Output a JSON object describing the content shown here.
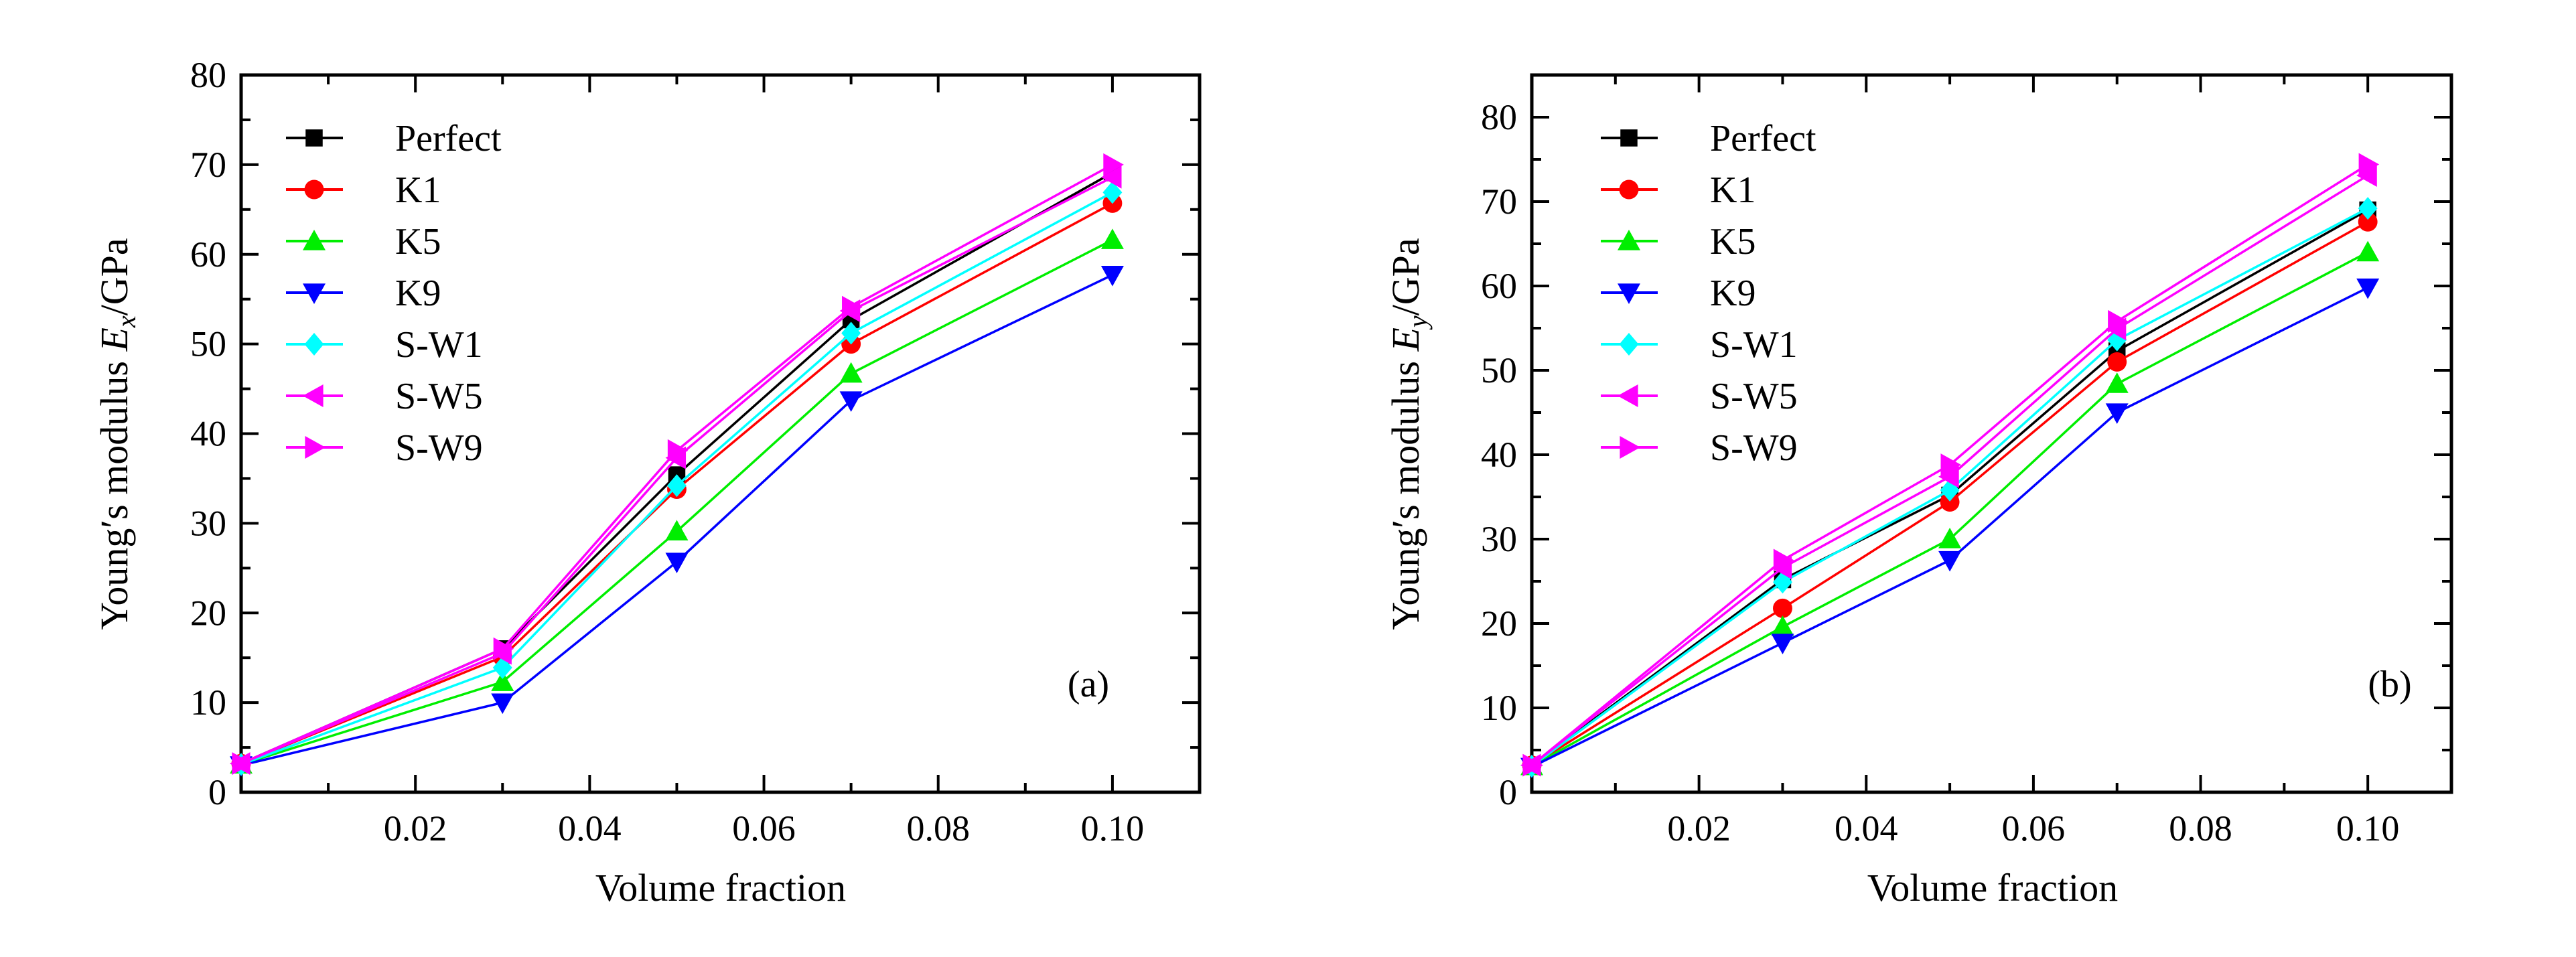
{
  "chart_data": [
    {
      "type": "line",
      "panel_label": "(a)",
      "xlabel": "Volume fraction",
      "ylabel_prefix": "Young′s modulus ",
      "ylabel_symbol": "E",
      "ylabel_sub": "x",
      "ylabel_suffix": "/GPa",
      "xlim": [
        0,
        0.11
      ],
      "ylim": [
        0,
        80
      ],
      "xticks": [
        0.02,
        0.04,
        0.06,
        0.08,
        0.1
      ],
      "xtick_labels": [
        "0.02",
        "0.04",
        "0.06",
        "0.08",
        "0.10"
      ],
      "yticks": [
        0,
        10,
        20,
        30,
        40,
        50,
        60,
        70,
        80
      ],
      "ytick_labels": [
        "0",
        "10",
        "20",
        "30",
        "40",
        "50",
        "60",
        "70",
        "80"
      ],
      "grid": false,
      "legend_position": "top-left",
      "x": [
        0,
        0.03,
        0.05,
        0.07,
        0.1
      ],
      "series": [
        {
          "name": "Perfect",
          "color": "#000000",
          "marker": "square",
          "values": [
            3.2,
            16.0,
            35.4,
            52.7,
            69.1
          ]
        },
        {
          "name": "K1",
          "color": "#ff0000",
          "marker": "circle",
          "values": [
            3.2,
            15.1,
            33.8,
            50.0,
            65.7
          ]
        },
        {
          "name": "K5",
          "color": "#00ee00",
          "marker": "triangle-up",
          "values": [
            3.1,
            12.3,
            29.1,
            46.7,
            61.6
          ]
        },
        {
          "name": "K9",
          "color": "#0000ff",
          "marker": "triangle-down",
          "values": [
            3.0,
            10.0,
            25.7,
            43.7,
            57.7
          ]
        },
        {
          "name": "S-W1",
          "color": "#00ffff",
          "marker": "diamond",
          "values": [
            3.1,
            13.9,
            34.2,
            51.2,
            66.9
          ]
        },
        {
          "name": "S-W5",
          "color": "#ff00ff",
          "marker": "triangle-left",
          "values": [
            3.2,
            15.5,
            37.3,
            53.7,
            68.6
          ]
        },
        {
          "name": "S-W9",
          "color": "#ff00ff",
          "marker": "triangle-right",
          "values": [
            3.2,
            16.0,
            38.1,
            54.1,
            70.0
          ]
        }
      ]
    },
    {
      "type": "line",
      "panel_label": "(b)",
      "xlabel": "Volume fraction",
      "ylabel_prefix": "Young′s modulus ",
      "ylabel_symbol": "E",
      "ylabel_sub": "y",
      "ylabel_suffix": "/GPa",
      "xlim": [
        0,
        0.11
      ],
      "ylim": [
        0,
        85
      ],
      "xticks": [
        0.02,
        0.04,
        0.06,
        0.08,
        0.1
      ],
      "xtick_labels": [
        "0.02",
        "0.04",
        "0.06",
        "0.08",
        "0.10"
      ],
      "yticks": [
        0,
        10,
        20,
        30,
        40,
        50,
        60,
        70,
        80
      ],
      "ytick_labels": [
        "0",
        "10",
        "20",
        "30",
        "40",
        "50",
        "60",
        "70",
        "80"
      ],
      "grid": false,
      "legend_position": "top-left",
      "x": [
        0,
        0.03,
        0.05,
        0.07,
        0.1
      ],
      "series": [
        {
          "name": "Perfect",
          "color": "#000000",
          "marker": "square",
          "values": [
            3.2,
            25.2,
            35.2,
            52.3,
            69.0
          ]
        },
        {
          "name": "K1",
          "color": "#ff0000",
          "marker": "circle",
          "values": [
            3.2,
            21.8,
            34.4,
            51.0,
            67.6
          ]
        },
        {
          "name": "K5",
          "color": "#00ee00",
          "marker": "triangle-up",
          "values": [
            3.1,
            19.6,
            30.0,
            48.4,
            64.0
          ]
        },
        {
          "name": "K9",
          "color": "#0000ff",
          "marker": "triangle-down",
          "values": [
            3.0,
            17.7,
            27.5,
            45.0,
            59.8
          ]
        },
        {
          "name": "S-W1",
          "color": "#00ffff",
          "marker": "diamond",
          "values": [
            3.1,
            24.9,
            35.8,
            53.6,
            69.2
          ]
        },
        {
          "name": "S-W5",
          "color": "#ff00ff",
          "marker": "triangle-left",
          "values": [
            3.2,
            26.6,
            37.4,
            54.9,
            73.1
          ]
        },
        {
          "name": "S-W9",
          "color": "#ff00ff",
          "marker": "triangle-right",
          "values": [
            3.2,
            27.5,
            38.8,
            55.8,
            74.4
          ]
        }
      ]
    }
  ]
}
